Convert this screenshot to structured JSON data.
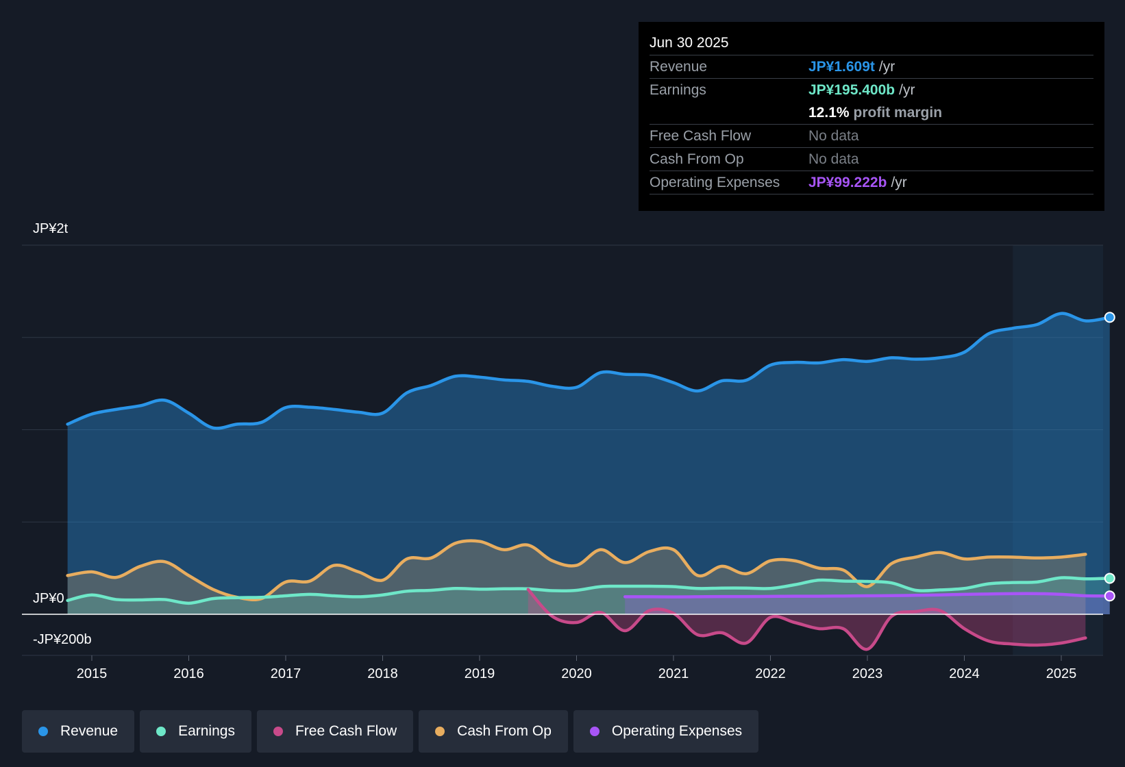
{
  "tooltip": {
    "date": "Jun 30 2025",
    "rows": [
      {
        "name": "Revenue",
        "value": "JP¥1.609t",
        "unit": "/yr",
        "color": "#2a95e8"
      },
      {
        "name": "Earnings",
        "value": "JP¥195.400b",
        "unit": "/yr",
        "color": "#6ee7c8"
      },
      {
        "name": "",
        "value": "12.1%",
        "unit": "profit margin",
        "color": "#ffffff"
      },
      {
        "name": "Free Cash Flow",
        "value": "No data",
        "unit": "",
        "color": "#7a7f87"
      },
      {
        "name": "Cash From Op",
        "value": "No data",
        "unit": "",
        "color": "#7a7f87"
      },
      {
        "name": "Operating Expenses",
        "value": "JP¥99.222b",
        "unit": "/yr",
        "color": "#a855f7"
      }
    ]
  },
  "legend": [
    {
      "label": "Revenue",
      "color": "#2a95e8"
    },
    {
      "label": "Earnings",
      "color": "#6ee7c8"
    },
    {
      "label": "Free Cash Flow",
      "color": "#c84a8a"
    },
    {
      "label": "Cash From Op",
      "color": "#e8ad5f"
    },
    {
      "label": "Operating Expenses",
      "color": "#a855f7"
    }
  ],
  "chart_data": {
    "type": "area",
    "title": "",
    "y_labels": {
      "top": "JP¥2t",
      "zero": "JP¥0",
      "bottom": "-JP¥200b"
    },
    "ylim": [
      -200,
      2000
    ],
    "yunit": "JP¥ billions",
    "x_ticks": [
      "2015",
      "2016",
      "2017",
      "2018",
      "2019",
      "2020",
      "2021",
      "2022",
      "2023",
      "2024",
      "2025"
    ],
    "xlim": [
      2014.7,
      2025.55
    ],
    "forecast_start": 2024.5,
    "series": [
      {
        "name": "Revenue",
        "color": "#2a95e8",
        "x": [
          2014.75,
          2015.0,
          2015.25,
          2015.5,
          2015.75,
          2016.0,
          2016.25,
          2016.5,
          2016.75,
          2017.0,
          2017.25,
          2017.5,
          2017.75,
          2018.0,
          2018.25,
          2018.5,
          2018.75,
          2019.0,
          2019.25,
          2019.5,
          2019.75,
          2020.0,
          2020.25,
          2020.5,
          2020.75,
          2021.0,
          2021.25,
          2021.5,
          2021.75,
          2022.0,
          2022.25,
          2022.5,
          2022.75,
          2023.0,
          2023.25,
          2023.5,
          2023.75,
          2024.0,
          2024.25,
          2024.5,
          2024.75,
          2025.0,
          2025.25,
          2025.5
        ],
        "values": [
          1030,
          1085,
          1110,
          1130,
          1160,
          1090,
          1010,
          1030,
          1040,
          1120,
          1122,
          1110,
          1095,
          1090,
          1200,
          1240,
          1290,
          1285,
          1270,
          1262,
          1235,
          1230,
          1310,
          1300,
          1295,
          1255,
          1210,
          1265,
          1268,
          1350,
          1365,
          1362,
          1380,
          1370,
          1390,
          1382,
          1390,
          1420,
          1520,
          1550,
          1570,
          1630,
          1590,
          1609
        ]
      },
      {
        "name": "Earnings",
        "color": "#6ee7c8",
        "x": [
          2014.75,
          2015.0,
          2015.25,
          2015.5,
          2015.75,
          2016.0,
          2016.25,
          2016.5,
          2016.75,
          2017.0,
          2017.25,
          2017.5,
          2017.75,
          2018.0,
          2018.25,
          2018.5,
          2018.75,
          2019.0,
          2019.25,
          2019.5,
          2019.75,
          2020.0,
          2020.25,
          2020.5,
          2020.75,
          2021.0,
          2021.25,
          2021.5,
          2021.75,
          2022.0,
          2022.25,
          2022.5,
          2022.75,
          2023.0,
          2023.25,
          2023.5,
          2023.75,
          2024.0,
          2024.25,
          2024.5,
          2024.75,
          2025.0,
          2025.25,
          2025.5
        ],
        "values": [
          75,
          105,
          80,
          78,
          80,
          60,
          85,
          90,
          92,
          100,
          108,
          100,
          95,
          105,
          125,
          130,
          140,
          136,
          138,
          138,
          128,
          130,
          150,
          152,
          152,
          150,
          140,
          142,
          142,
          140,
          160,
          185,
          180,
          178,
          170,
          130,
          132,
          140,
          165,
          172,
          175,
          198,
          192,
          195
        ]
      },
      {
        "name": "Cash From Op",
        "color": "#e8ad5f",
        "x": [
          2014.75,
          2015.0,
          2015.25,
          2015.5,
          2015.75,
          2016.0,
          2016.25,
          2016.5,
          2016.75,
          2017.0,
          2017.25,
          2017.5,
          2017.75,
          2018.0,
          2018.25,
          2018.5,
          2018.75,
          2019.0,
          2019.25,
          2019.5,
          2019.75,
          2020.0,
          2020.25,
          2020.5,
          2020.75,
          2021.0,
          2021.25,
          2021.5,
          2021.75,
          2022.0,
          2022.25,
          2022.5,
          2022.75,
          2023.0,
          2023.25,
          2023.5,
          2023.75,
          2024.0,
          2024.25,
          2024.5,
          2024.75,
          2025.0,
          2025.25
        ],
        "values": [
          210,
          230,
          200,
          260,
          285,
          210,
          135,
          92,
          85,
          175,
          180,
          265,
          230,
          185,
          300,
          305,
          385,
          395,
          350,
          375,
          290,
          265,
          350,
          280,
          340,
          350,
          210,
          260,
          220,
          290,
          290,
          250,
          240,
          150,
          275,
          310,
          335,
          300,
          310,
          310,
          305,
          310,
          325
        ]
      },
      {
        "name": "Free Cash Flow",
        "color": "#c84a8a",
        "x": [
          2019.5,
          2019.75,
          2020.0,
          2020.25,
          2020.5,
          2020.75,
          2021.0,
          2021.25,
          2021.5,
          2021.75,
          2022.0,
          2022.25,
          2022.5,
          2022.75,
          2023.0,
          2023.25,
          2023.5,
          2023.75,
          2024.0,
          2024.25,
          2024.5,
          2024.75,
          2025.0,
          2025.25
        ],
        "values": [
          135,
          -10,
          -40,
          10,
          -80,
          20,
          5,
          -100,
          -90,
          -140,
          -15,
          -40,
          -70,
          -70,
          -170,
          -10,
          15,
          20,
          -70,
          -130,
          -145,
          -150,
          -140,
          -115
        ]
      },
      {
        "name": "Operating Expenses",
        "color": "#a855f7",
        "x": [
          2020.5,
          2020.75,
          2021.0,
          2021.25,
          2021.5,
          2021.75,
          2022.0,
          2022.25,
          2022.5,
          2022.75,
          2023.0,
          2023.25,
          2023.5,
          2023.75,
          2024.0,
          2024.25,
          2024.5,
          2024.75,
          2025.0,
          2025.25,
          2025.5
        ],
        "values": [
          95,
          95,
          94,
          95,
          96,
          96,
          97,
          98,
          98,
          99,
          100,
          101,
          103,
          105,
          108,
          110,
          112,
          112,
          108,
          100,
          99.222
        ]
      }
    ]
  }
}
